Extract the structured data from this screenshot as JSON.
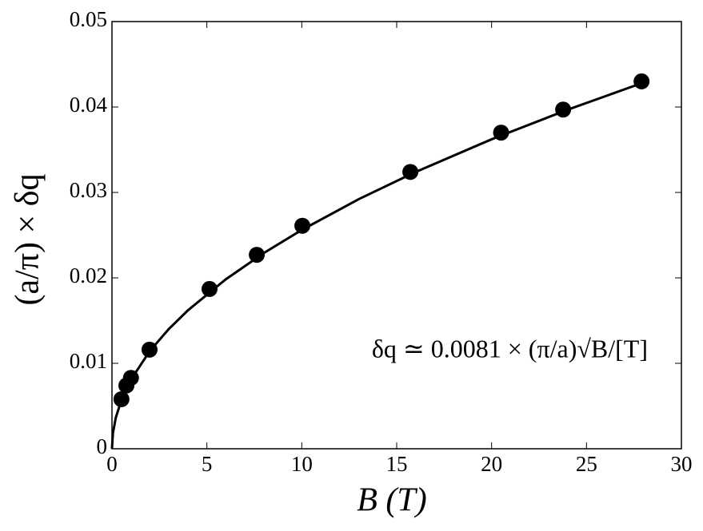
{
  "chart_data": {
    "type": "scatter",
    "x_label": "B (T)",
    "y_label": "(a/π) × δq",
    "annotation": "δq ≃ 0.0081 × (π/a)√B/[T]",
    "xlim": [
      0,
      30
    ],
    "xticks": [
      0,
      5,
      10,
      15,
      20,
      25,
      30
    ],
    "ylim": [
      0,
      0.05
    ],
    "yticks": [
      0,
      0.01,
      0.02,
      0.03,
      0.04,
      0.05
    ],
    "series": [
      {
        "style": "markers",
        "color": "#000000",
        "x": [
          0.5,
          0.76,
          1.0,
          1.98,
          5.14,
          7.63,
          10.03,
          15.72,
          20.5,
          23.77,
          27.9
        ],
        "values": [
          0.0058,
          0.0074,
          0.0083,
          0.0116,
          0.0187,
          0.0227,
          0.0261,
          0.0324,
          0.037,
          0.0397,
          0.043
        ]
      },
      {
        "style": "line",
        "color": "#000000",
        "x": [
          0,
          0.05,
          0.2,
          0.5,
          1,
          2,
          3,
          4,
          6,
          8,
          10,
          13,
          16,
          20,
          24,
          28
        ],
        "values": [
          0,
          0.00181,
          0.00362,
          0.00573,
          0.0081,
          0.01146,
          0.01403,
          0.0162,
          0.01984,
          0.02291,
          0.02561,
          0.02921,
          0.0324,
          0.03622,
          0.03968,
          0.04286
        ]
      }
    ]
  }
}
